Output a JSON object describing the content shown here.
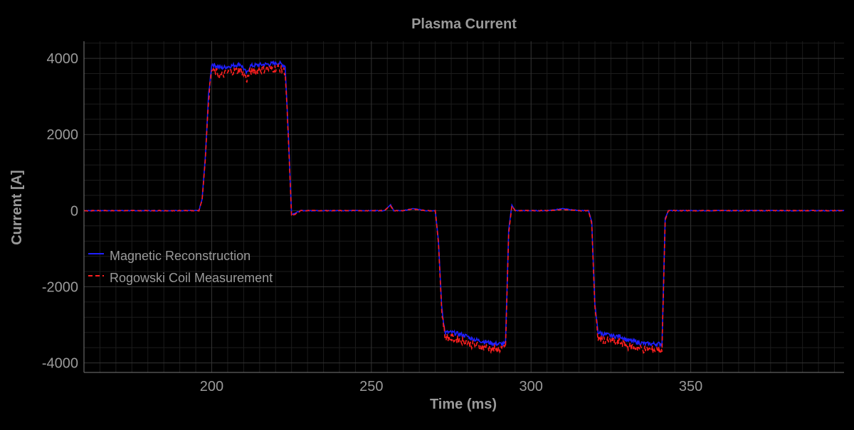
{
  "chart_data": {
    "type": "line",
    "title": "Plasma Current",
    "xlabel": "Time (ms)",
    "ylabel": "Current [A]",
    "xlim": [
      160,
      398
    ],
    "ylim": [
      -4250,
      4450
    ],
    "x_ticks": [
      200,
      250,
      300,
      350
    ],
    "y_ticks": [
      4000,
      2000,
      0,
      -2000,
      -4000
    ],
    "x_tick_labels": [
      "200",
      "250",
      "300",
      "350"
    ],
    "y_tick_labels": [
      "4000",
      "2000",
      "0",
      "-2000",
      "-4000"
    ],
    "grid": true,
    "legend": {
      "position": "left-center"
    },
    "series": [
      {
        "name": "Magnetic Reconstruction",
        "color": "#1f1fff",
        "style": "solid",
        "x": [
          160,
          196,
          197,
          198,
          199,
          200,
          203,
          206,
          209,
          211,
          212,
          215,
          218,
          221,
          223,
          224,
          225,
          228,
          240,
          250,
          254,
          256,
          257,
          260,
          263,
          265,
          267,
          270,
          271,
          272,
          273,
          275,
          278,
          280,
          281,
          283,
          286,
          289,
          292,
          293,
          294,
          295,
          297,
          300,
          305,
          310,
          315,
          318,
          319,
          320,
          321,
          323,
          326,
          328,
          330,
          333,
          336,
          339,
          341,
          342,
          343,
          350,
          398
        ],
        "y": [
          0,
          0,
          300,
          1400,
          3000,
          3850,
          3750,
          3800,
          3850,
          3600,
          3800,
          3830,
          3850,
          3880,
          3800,
          2000,
          -100,
          0,
          0,
          0,
          0,
          150,
          0,
          0,
          50,
          30,
          0,
          0,
          -800,
          -2500,
          -3200,
          -3200,
          -3250,
          -3300,
          -3350,
          -3400,
          -3450,
          -3500,
          -3500,
          -500,
          150,
          0,
          0,
          0,
          0,
          50,
          0,
          0,
          -300,
          -2500,
          -3200,
          -3250,
          -3300,
          -3300,
          -3400,
          -3450,
          -3500,
          -3500,
          -3500,
          -200,
          0,
          0,
          0
        ]
      },
      {
        "name": "Rogowski Coil Measurement",
        "color": "#ff1f1f",
        "style": "dashed",
        "x": [
          160,
          196,
          197,
          198,
          199,
          200,
          203,
          206,
          209,
          211,
          212,
          215,
          218,
          221,
          223,
          224,
          225,
          228,
          240,
          250,
          254,
          256,
          257,
          260,
          263,
          265,
          267,
          270,
          271,
          272,
          273,
          275,
          278,
          280,
          281,
          283,
          286,
          289,
          292,
          293,
          294,
          295,
          297,
          300,
          305,
          310,
          315,
          318,
          319,
          320,
          321,
          323,
          326,
          328,
          330,
          333,
          336,
          339,
          341,
          342,
          343,
          350,
          398
        ],
        "y": [
          0,
          0,
          280,
          1350,
          2950,
          3700,
          3550,
          3650,
          3700,
          3450,
          3650,
          3700,
          3720,
          3750,
          3650,
          1900,
          -150,
          0,
          0,
          0,
          0,
          130,
          0,
          0,
          40,
          20,
          0,
          0,
          -850,
          -2600,
          -3300,
          -3350,
          -3400,
          -3450,
          -3500,
          -3550,
          -3600,
          -3650,
          -3600,
          -600,
          130,
          0,
          0,
          0,
          0,
          30,
          0,
          0,
          -350,
          -2600,
          -3350,
          -3400,
          -3450,
          -3450,
          -3550,
          -3600,
          -3650,
          -3650,
          -3650,
          -250,
          0,
          0,
          0
        ]
      }
    ]
  },
  "colors": {
    "background": "#000000",
    "grid": "#333333",
    "text": "#9a9a9a"
  }
}
